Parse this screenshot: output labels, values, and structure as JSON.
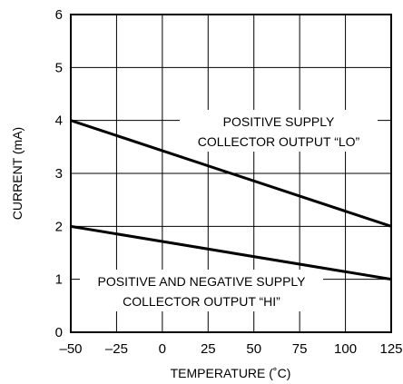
{
  "chart_data": {
    "type": "line",
    "title": "",
    "xlabel": "TEMPERATURE (˚C)",
    "ylabel": "CURRENT (mA)",
    "xlim": [
      -50,
      125
    ],
    "ylim": [
      0,
      6
    ],
    "x_ticks": [
      "–50",
      "–25",
      "0",
      "25",
      "50",
      "75",
      "100",
      "125"
    ],
    "y_ticks": [
      "0",
      "1",
      "2",
      "3",
      "4",
      "5",
      "6"
    ],
    "grid": true,
    "series": [
      {
        "x": [
          -50,
          125
        ],
        "y": [
          4,
          2
        ]
      },
      {
        "x": [
          -50,
          125
        ],
        "y": [
          2,
          1
        ]
      }
    ],
    "annotations": [
      {
        "lines": [
          "POSITIVE SUPPLY",
          "COLLECTOR OUTPUT “LO”"
        ]
      },
      {
        "lines": [
          "POSITIVE AND NEGATIVE SUPPLY",
          "COLLECTOR OUTPUT “HI”"
        ]
      }
    ]
  }
}
